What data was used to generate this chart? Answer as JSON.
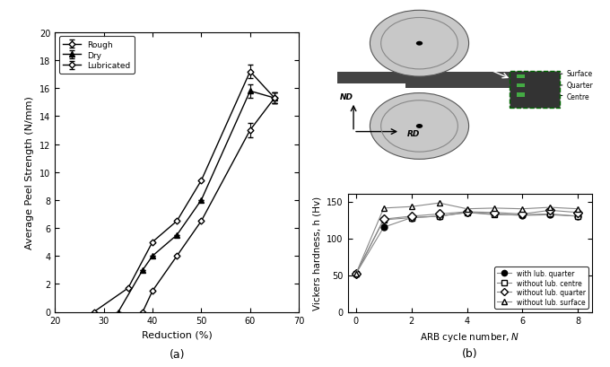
{
  "fig_width": 6.8,
  "fig_height": 4.1,
  "dpi": 100,
  "panel_a": {
    "xlabel": "Reduction (%)",
    "ylabel": "Average Peel Strength (N/mm)",
    "xlim": [
      20,
      70
    ],
    "ylim": [
      0,
      20
    ],
    "xticks": [
      20,
      30,
      40,
      50,
      60,
      70
    ],
    "yticks": [
      0,
      2,
      4,
      6,
      8,
      10,
      12,
      14,
      16,
      18,
      20
    ],
    "label_a": "(a)",
    "rough": {
      "x": [
        28,
        35,
        40,
        45,
        50,
        60,
        65
      ],
      "y": [
        0.0,
        1.7,
        5.0,
        6.5,
        9.4,
        17.2,
        15.3
      ],
      "yerr": [
        0.0,
        0.0,
        0.0,
        0.0,
        0.0,
        0.5,
        0.4
      ],
      "label": "Rough",
      "marker": "D",
      "markersize": 3.5
    },
    "dry": {
      "x": [
        33,
        38,
        40,
        45,
        50,
        60,
        65
      ],
      "y": [
        0.0,
        3.0,
        4.0,
        5.5,
        8.0,
        15.8,
        15.3
      ],
      "yerr": [
        0.0,
        0.0,
        0.0,
        0.0,
        0.0,
        0.5,
        0.4
      ],
      "label": "Dry",
      "marker": "^",
      "markersize": 4
    },
    "lubricated": {
      "x": [
        38,
        40,
        45,
        50,
        60,
        65
      ],
      "y": [
        0.0,
        1.5,
        4.0,
        6.5,
        13.0,
        15.3
      ],
      "yerr": [
        0.0,
        0.0,
        0.0,
        0.0,
        0.5,
        0.4
      ],
      "label": "Lubricated",
      "marker": "D",
      "markersize": 3.5
    }
  },
  "panel_b": {
    "xlabel": "ARB cycle number, N",
    "ylabel": "Vickers hardness, h (Hv)",
    "xlim": [
      -0.3,
      8.5
    ],
    "ylim": [
      0,
      160
    ],
    "xticks": [
      0,
      2,
      4,
      6,
      8
    ],
    "yticks": [
      0,
      50,
      100,
      150
    ],
    "label_b": "(b)",
    "with_lub_quarter": {
      "x": [
        0,
        1,
        2,
        3,
        4,
        5,
        6,
        7,
        8
      ],
      "y": [
        52,
        115,
        128,
        130,
        135,
        133,
        131,
        132,
        130
      ],
      "label": "with lub. quarter",
      "marker": "o",
      "markersize": 5
    },
    "without_lub_centre": {
      "x": [
        0,
        1,
        2,
        3,
        4,
        5,
        6,
        7,
        8
      ],
      "y": [
        52,
        125,
        128,
        130,
        135,
        132,
        132,
        133,
        130
      ],
      "label": "without lub. centre",
      "marker": "s",
      "markersize": 5
    },
    "without_lub_quarter": {
      "x": [
        0,
        1,
        2,
        3,
        4,
        5,
        6,
        7,
        8
      ],
      "y": [
        52,
        126,
        130,
        133,
        136,
        135,
        133,
        138,
        135
      ],
      "label": "without lub. quarter",
      "marker": "D",
      "markersize": 5
    },
    "without_lub_surface": {
      "x": [
        0,
        1,
        2,
        3,
        4,
        5,
        6,
        7,
        8
      ],
      "y": [
        52,
        141,
        143,
        148,
        140,
        141,
        140,
        142,
        140
      ],
      "label": "without lub. surface",
      "marker": "^",
      "markersize": 5
    }
  },
  "schema": {
    "roller_color": "#c8c8c8",
    "roller_ring_color": "#888888",
    "strip_color": "#444444",
    "box_color": "#333333",
    "box_edge_color": "#006600",
    "sq_color": "#44aa44",
    "label_surface": "Surface",
    "label_quarter": "Quarter",
    "label_centre": "Centre",
    "label_nd": "ND",
    "label_rd": "RD"
  }
}
